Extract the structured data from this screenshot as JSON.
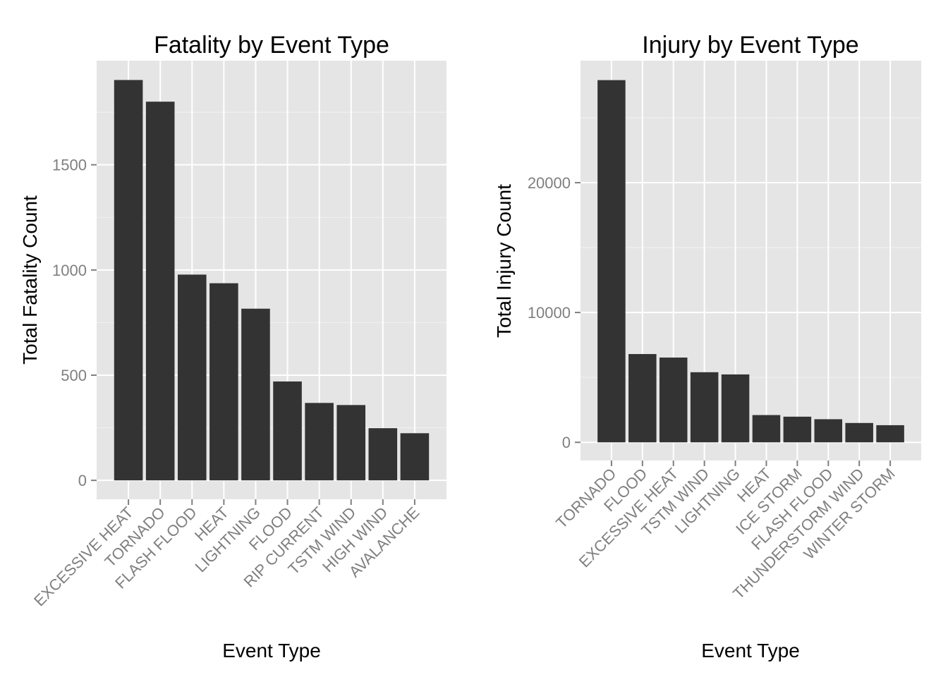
{
  "chart_data": [
    {
      "type": "bar",
      "title": "Fatality by Event Type",
      "xlabel": "Event Type",
      "ylabel": "Total Fatality Count",
      "categories": [
        "EXCESSIVE HEAT",
        "TORNADO",
        "FLASH FLOOD",
        "HEAT",
        "LIGHTNING",
        "FLOOD",
        "RIP CURRENT",
        "TSTM WIND",
        "HIGH WIND",
        "AVALANCHE"
      ],
      "values": [
        1903,
        1800,
        978,
        937,
        816,
        470,
        368,
        358,
        248,
        224
      ],
      "yticks": [
        0,
        500,
        1000,
        1500
      ],
      "ylim": [
        -90,
        1995
      ],
      "grid": true,
      "bar_color": "#333333",
      "panel_color": "#e5e5e5"
    },
    {
      "type": "bar",
      "title": "Injury by Event Type",
      "xlabel": "Event Type",
      "ylabel": "Total Injury Count",
      "categories": [
        "TORNADO",
        "FLOOD",
        "EXCESSIVE HEAT",
        "TSTM WIND",
        "LIGHTNING",
        "HEAT",
        "ICE STORM",
        "FLASH FLOOD",
        "THUNDERSTORM WIND",
        "WINTER STORM"
      ],
      "values": [
        27900,
        6800,
        6530,
        5400,
        5230,
        2100,
        1975,
        1780,
        1490,
        1320
      ],
      "yticks": [
        0,
        10000,
        20000
      ],
      "ylim": [
        -1400,
        29400
      ],
      "grid": true,
      "bar_color": "#333333",
      "panel_color": "#e5e5e5"
    }
  ]
}
